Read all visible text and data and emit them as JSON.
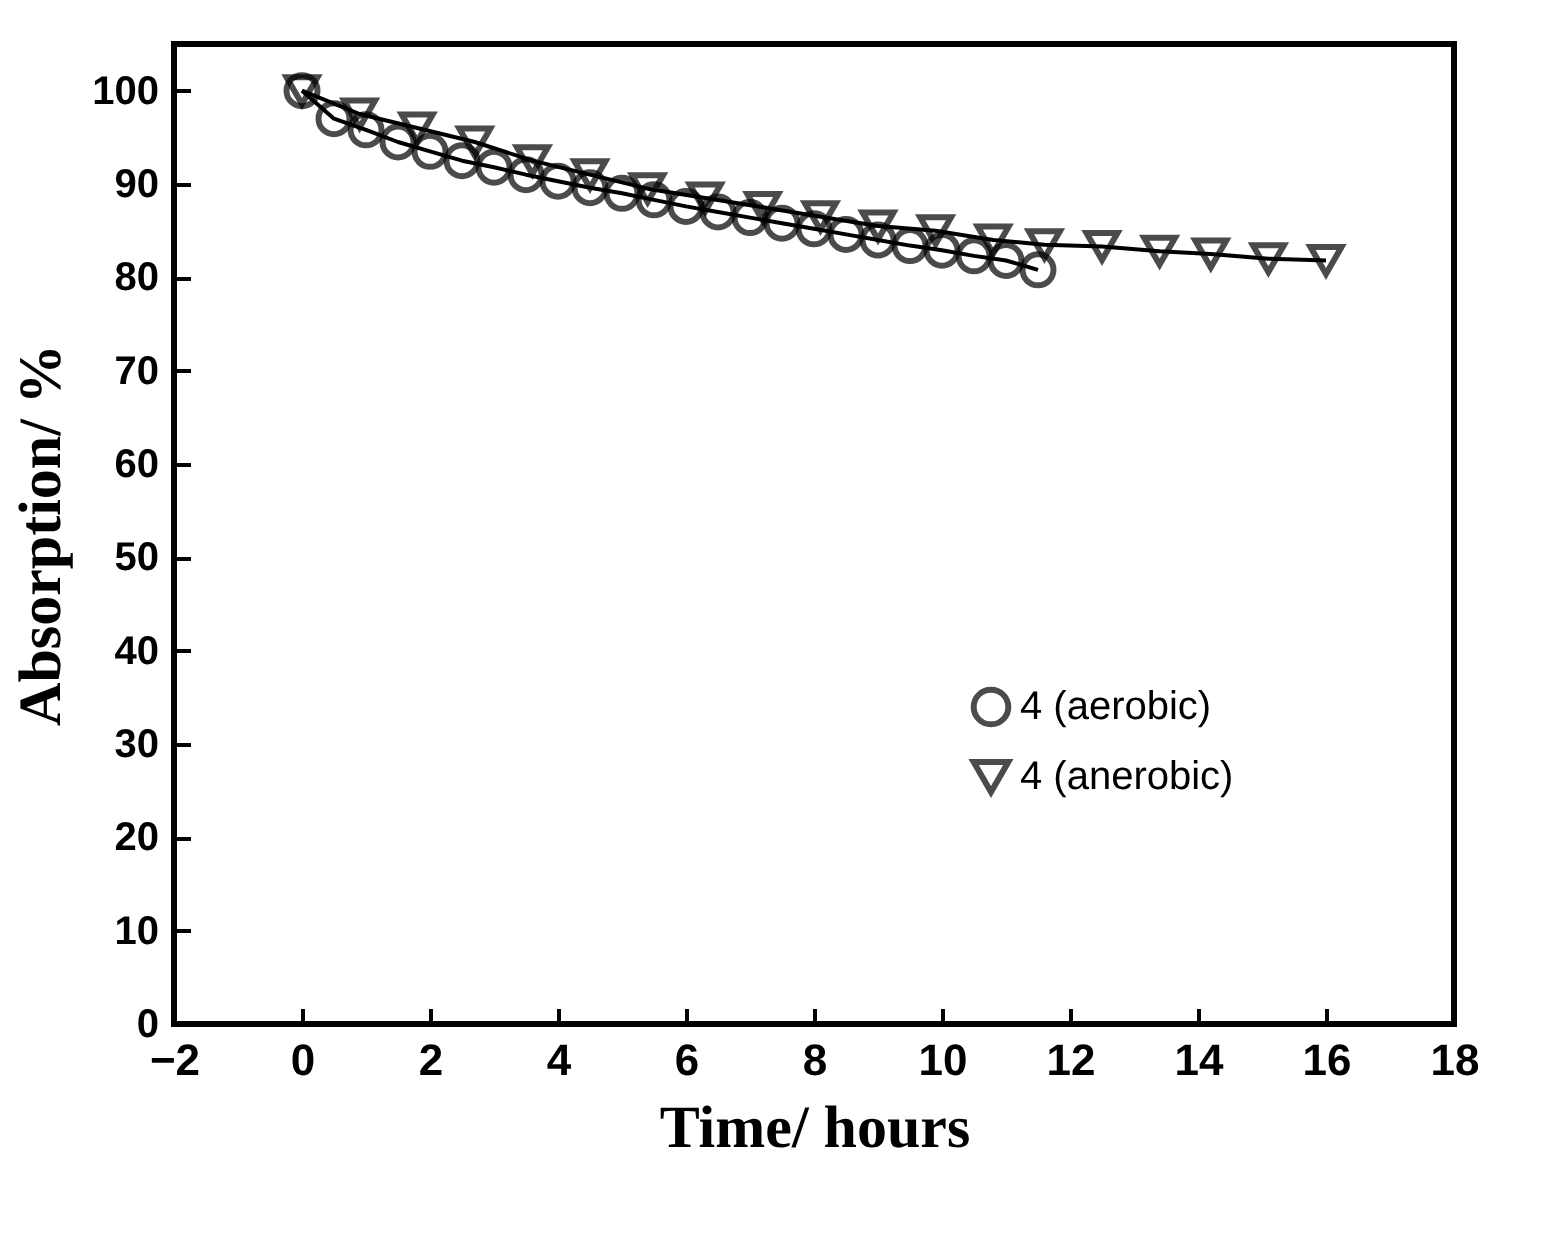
{
  "chart_data": {
    "type": "line",
    "xlabel": "Time/ hours",
    "ylabel": "Absorption/ %",
    "xlim": [
      -2,
      18
    ],
    "xticks": [
      -2,
      0,
      2,
      4,
      6,
      8,
      10,
      12,
      14,
      16,
      18
    ],
    "ylim": [
      0,
      105
    ],
    "yticks": [
      0,
      10,
      20,
      30,
      40,
      50,
      60,
      70,
      80,
      90,
      100
    ],
    "legend": "bottom right",
    "grid": false,
    "line_style": "solid",
    "series": [
      {
        "name": "4 (aerobic)",
        "color": "#000000",
        "marker": "circle",
        "x": [
          0,
          0.5,
          1,
          1.5,
          2,
          2.5,
          3,
          3.5,
          4,
          4.5,
          5,
          5.5,
          6,
          6.5,
          7,
          7.5,
          8,
          8.5,
          9,
          9.5,
          10,
          10.5,
          11,
          11.5
        ],
        "values": [
          100,
          97,
          95.8,
          94.5,
          93.5,
          92.5,
          91.8,
          91,
          90.3,
          89.6,
          89,
          88.3,
          87.6,
          87,
          86.4,
          85.8,
          85.2,
          84.6,
          84,
          83.4,
          82.9,
          82.3,
          81.8,
          80.8
        ]
      },
      {
        "name": "4 (anerobic)",
        "color": "#000000",
        "marker": "triangle",
        "x": [
          0,
          0.9,
          1.8,
          2.7,
          3.6,
          4.5,
          5.4,
          6.3,
          7.2,
          8.1,
          9,
          9.9,
          10.8,
          11.6,
          12.5,
          13.4,
          14.2,
          15.1,
          16
        ],
        "values": [
          100,
          97.5,
          96,
          94.5,
          92.5,
          91,
          89.5,
          88.5,
          87.5,
          86.5,
          85.5,
          85,
          84,
          83.5,
          83.3,
          82.8,
          82.5,
          82,
          81.8
        ]
      }
    ]
  }
}
